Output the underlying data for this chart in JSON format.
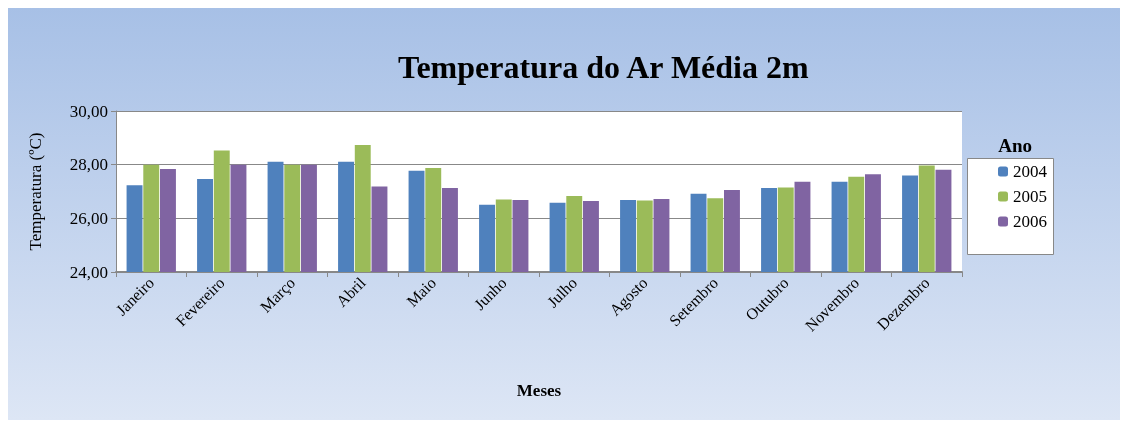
{
  "chart_data": {
    "type": "bar",
    "title": "Temperatura do Ar Média 2m",
    "xlabel": "Meses",
    "ylabel": "Temperatura (ºC)",
    "legend_title": "Ano",
    "categories": [
      "Janeiro",
      "Fevereiro",
      "Março",
      "Abril",
      "Maio",
      "Junho",
      "Julho",
      "Agosto",
      "Setembro",
      "Outubro",
      "Novembro",
      "Dezembro"
    ],
    "series": [
      {
        "name": "2004",
        "color": "#4f81bd",
        "values": [
          27.23,
          27.47,
          28.11,
          28.11,
          27.77,
          26.51,
          26.58,
          26.68,
          26.92,
          27.13,
          27.36,
          27.6
        ]
      },
      {
        "name": "2005",
        "color": "#9bbb59",
        "values": [
          28.0,
          28.53,
          28.0,
          28.73,
          27.88,
          26.7,
          26.83,
          26.66,
          26.75,
          27.15,
          27.55,
          27.97
        ]
      },
      {
        "name": "2006",
        "color": "#8064a2",
        "values": [
          27.84,
          28.0,
          28.0,
          27.19,
          27.13,
          26.68,
          26.65,
          26.72,
          27.06,
          27.36,
          27.64,
          27.81
        ]
      }
    ],
    "ylim": [
      24,
      30
    ],
    "yticks": [
      {
        "value": 24,
        "label": "24,00"
      },
      {
        "value": 26,
        "label": "26,00"
      },
      {
        "value": 28,
        "label": "28,00"
      },
      {
        "value": 30,
        "label": "30,00"
      }
    ],
    "grid": "y",
    "legend": "right"
  }
}
